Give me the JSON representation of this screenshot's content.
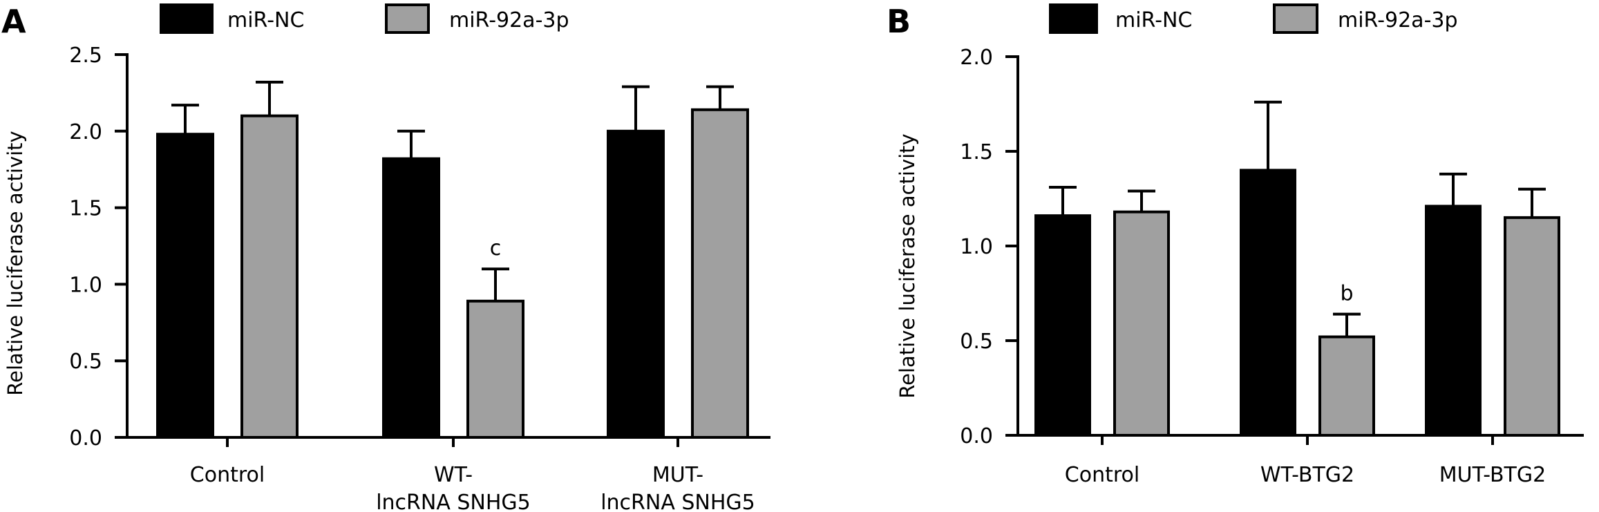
{
  "chart_data": [
    {
      "panel_label": "A",
      "type": "bar",
      "xlabel": "",
      "ylabel": "Relative luciferase activity",
      "ylim": [
        0,
        2.5
      ],
      "yticks": [
        "0.0",
        "0.5",
        "1.0",
        "1.5",
        "2.0",
        "2.5"
      ],
      "grid": false,
      "legend_position": "top",
      "categories": [
        [
          "Control"
        ],
        [
          "WT-",
          "lncRNA SNHG5"
        ],
        [
          "MUT-",
          "lncRNA SNHG5"
        ]
      ],
      "series": [
        {
          "name": "miR-NC",
          "color": "#000000",
          "values": [
            1.98,
            1.82,
            2.0
          ],
          "error": [
            0.19,
            0.18,
            0.29
          ]
        },
        {
          "name": "miR-92a-3p",
          "color": "#a0a0a0",
          "values": [
            2.1,
            0.89,
            2.14
          ],
          "error": [
            0.22,
            0.21,
            0.15
          ]
        }
      ],
      "annotations": [
        {
          "category_index": 1,
          "series_index": 1,
          "text": "c"
        }
      ]
    },
    {
      "panel_label": "B",
      "type": "bar",
      "xlabel": "",
      "ylabel": "Relative luciferase activity",
      "ylim": [
        0,
        2.0
      ],
      "yticks": [
        "0.0",
        "0.5",
        "1.0",
        "1.5",
        "2.0"
      ],
      "grid": false,
      "legend_position": "top",
      "categories": [
        [
          "Control"
        ],
        [
          "WT-BTG2"
        ],
        [
          "MUT-BTG2"
        ]
      ],
      "series": [
        {
          "name": "miR-NC",
          "color": "#000000",
          "values": [
            1.16,
            1.4,
            1.21
          ],
          "error": [
            0.15,
            0.36,
            0.17
          ]
        },
        {
          "name": "miR-92a-3p",
          "color": "#a0a0a0",
          "values": [
            1.18,
            0.52,
            1.15
          ],
          "error": [
            0.11,
            0.12,
            0.15
          ]
        }
      ],
      "annotations": [
        {
          "category_index": 1,
          "series_index": 1,
          "text": "b"
        }
      ]
    }
  ]
}
